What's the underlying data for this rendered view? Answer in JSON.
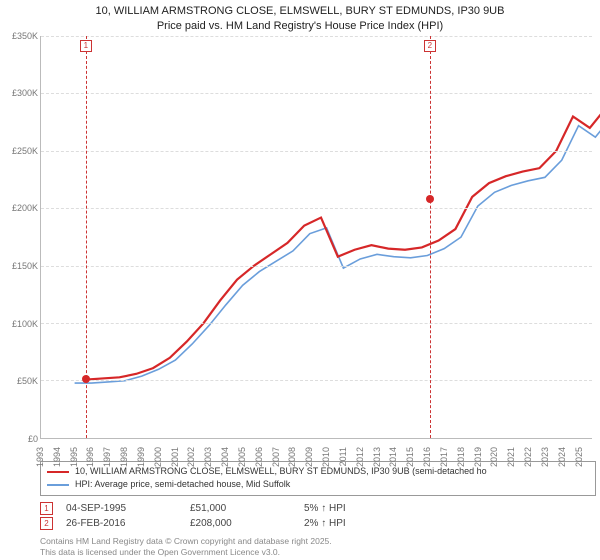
{
  "title": {
    "address": "10, WILLIAM ARMSTRONG CLOSE, ELMSWELL, BURY ST EDMUNDS, IP30 9UB",
    "subtitle": "Price paid vs. HM Land Registry's House Price Index (HPI)"
  },
  "chart": {
    "type": "line",
    "background_color": "#ffffff",
    "grid_color": "#dddddd",
    "axis_color": "#bbbbbb",
    "label_color": "#777777",
    "label_fontsize": 9,
    "ylim": [
      0,
      350000
    ],
    "ytick_step": 50000,
    "ytick_labels": [
      "£0",
      "£50K",
      "£100K",
      "£150K",
      "£200K",
      "£250K",
      "£300K",
      "£350K"
    ],
    "x_years": [
      1993,
      1994,
      1995,
      1996,
      1997,
      1998,
      1999,
      2000,
      2001,
      2002,
      2003,
      2004,
      2005,
      2006,
      2007,
      2008,
      2009,
      2010,
      2011,
      2012,
      2013,
      2014,
      2015,
      2016,
      2017,
      2018,
      2019,
      2020,
      2021,
      2022,
      2023,
      2024,
      2025
    ],
    "series": [
      {
        "name": "price",
        "color": "#d62728",
        "width": 2.2,
        "label": "10, WILLIAM ARMSTRONG CLOSE, ELMSWELL, BURY ST EDMUNDS, IP30 9UB (semi-detached ho",
        "start_year": 1995.67,
        "values": [
          51,
          52,
          53,
          56,
          61,
          70,
          84,
          100,
          120,
          138,
          150,
          160,
          170,
          185,
          192,
          158,
          164,
          168,
          165,
          164,
          166,
          172,
          182,
          210,
          222,
          228,
          232,
          235,
          250,
          280,
          270,
          288
        ]
      },
      {
        "name": "hpi",
        "color": "#6a9edb",
        "width": 1.6,
        "label": "HPI: Average price, semi-detached house, Mid Suffolk",
        "start_year": 1995.0,
        "values": [
          48,
          48,
          49,
          50,
          54,
          60,
          68,
          82,
          98,
          116,
          133,
          145,
          154,
          163,
          178,
          183,
          148,
          156,
          160,
          158,
          157,
          159,
          165,
          175,
          202,
          214,
          220,
          224,
          227,
          242,
          272,
          262,
          280
        ]
      }
    ],
    "events": [
      {
        "n": "1",
        "year": 1995.67,
        "value": 51000,
        "date": "04-SEP-1995",
        "price": "£51,000",
        "delta": "5% ↑ HPI"
      },
      {
        "n": "2",
        "year": 2016.15,
        "value": 208000,
        "date": "26-FEB-2016",
        "price": "£208,000",
        "delta": "2% ↑ HPI"
      }
    ],
    "event_line_color": "#cc3333",
    "event_box_bg": "#ffffff"
  },
  "legend_border": "#999999",
  "footer": {
    "line1": "Contains HM Land Registry data © Crown copyright and database right 2025.",
    "line2": "This data is licensed under the Open Government Licence v3.0."
  }
}
